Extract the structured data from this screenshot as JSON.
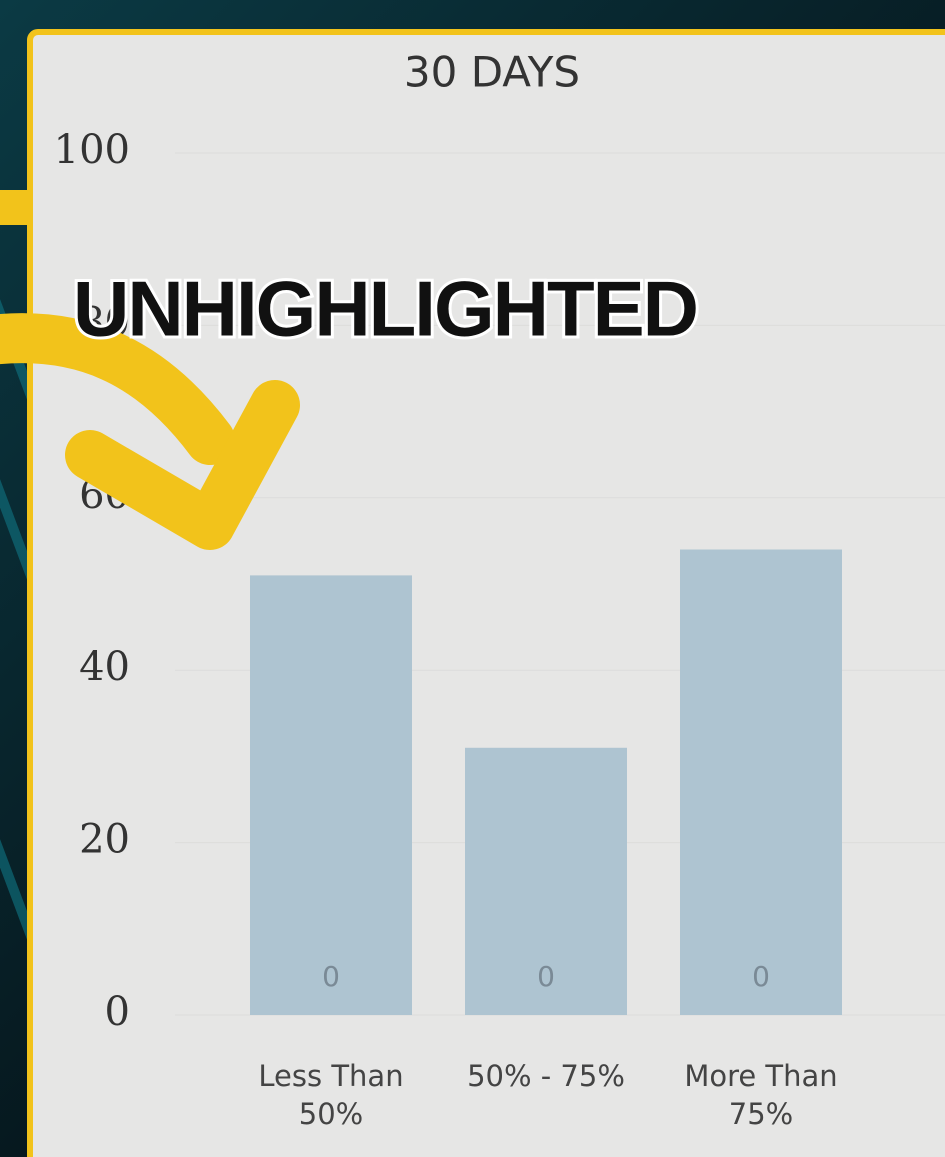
{
  "chart_data": {
    "type": "bar",
    "title": "30 DAYS",
    "annotation": "UNHIGHLIGHTED",
    "categories": [
      "Less Than 50%",
      "50% - 75%",
      "More Than 75%"
    ],
    "values": [
      51,
      31,
      54
    ],
    "inner_labels": [
      "0",
      "0",
      "0"
    ],
    "color": "#aec4d1",
    "ylim": [
      0,
      100
    ],
    "yticks": [
      0,
      20,
      40,
      60,
      80,
      100
    ],
    "grid": true
  }
}
